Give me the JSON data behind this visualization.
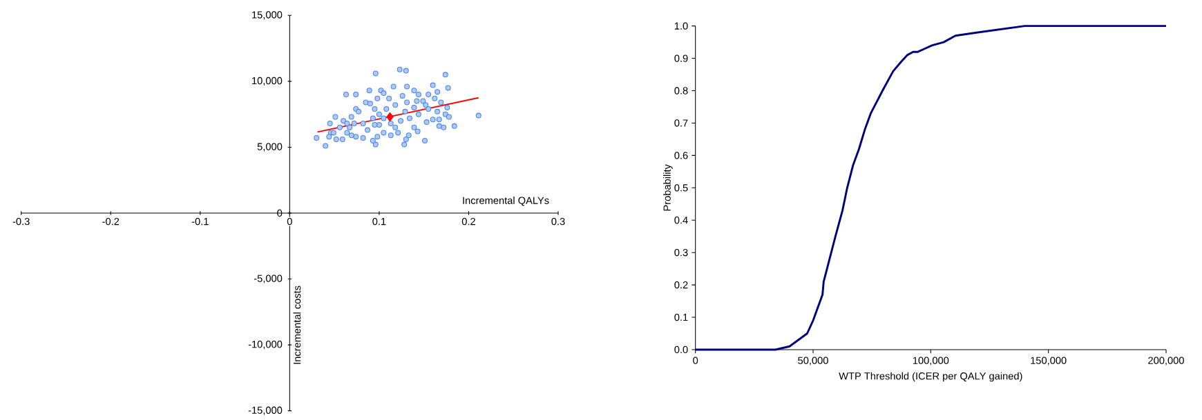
{
  "chart_data": [
    {
      "type": "scatter",
      "xlabel": "Incremental QALYs",
      "ylabel": "Incremental costs",
      "xlim": [
        -0.3,
        0.3
      ],
      "xticks": [
        -0.3,
        -0.2,
        -0.1,
        0,
        0.1,
        0.2,
        0.3
      ],
      "ylim": [
        -15000,
        15000
      ],
      "yticks": [
        {
          "value": -15000,
          "label": "-15,000"
        },
        {
          "value": -10000,
          "label": "-10,000"
        },
        {
          "value": -5000,
          "label": "-5,000"
        },
        {
          "value": 0,
          "label": "0"
        },
        {
          "value": 5000,
          "label": "5,000"
        },
        {
          "value": 10000,
          "label": "10,000"
        },
        {
          "value": 15000,
          "label": "15,000"
        }
      ],
      "series": [
        {
          "color": "#4a86e8",
          "marker": "circle",
          "x": [
            0.03,
            0.04,
            0.045,
            0.051,
            0.052,
            0.046,
            0.044,
            0.059,
            0.06,
            0.063,
            0.074,
            0.089,
            0.096,
            0.096,
            0.093,
            0.102,
            0.123,
            0.13,
            0.174,
            0.177,
            0.16,
            0.165,
            0.155,
            0.169,
            0.176,
            0.174,
            0.178,
            0.211,
            0.184,
            0.172,
            0.167,
            0.167,
            0.16,
            0.153,
            0.151,
            0.128,
            0.13,
            0.133,
            0.143,
            0.139,
            0.121,
            0.113,
            0.105,
            0.098,
            0.082,
            0.074,
            0.069,
            0.064,
            0.067,
            0.064,
            0.069,
            0.074,
            0.085,
            0.09,
            0.098,
            0.105,
            0.116,
            0.131,
            0.139,
            0.144,
            0.149,
            0.139,
            0.129,
            0.118,
            0.108,
            0.1,
            0.093,
            0.082,
            0.087,
            0.1,
            0.113,
            0.124,
            0.134,
            0.144,
            0.155,
            0.162,
            0.126,
            0.111,
            0.095,
            0.077,
            0.072,
            0.056,
            0.049,
            0.118,
            0.105,
            0.131,
            0.142,
            0.152,
            0.165,
            0.095
          ],
          "values": [
            5700,
            5100,
            6800,
            7300,
            5600,
            6100,
            5800,
            5600,
            7000,
            9000,
            9000,
            9300,
            10600,
            5200,
            5500,
            9300,
            10900,
            10800,
            10500,
            9500,
            9700,
            9200,
            9000,
            8400,
            8000,
            7500,
            7300,
            7400,
            6600,
            6500,
            6600,
            7100,
            7100,
            6900,
            5500,
            5200,
            5600,
            5900,
            6200,
            6500,
            6100,
            5900,
            6100,
            5800,
            5700,
            5800,
            5900,
            6100,
            6500,
            6800,
            7300,
            7900,
            8400,
            8300,
            8700,
            9100,
            9600,
            9600,
            9300,
            9000,
            8500,
            8000,
            7700,
            8200,
            7900,
            7500,
            7200,
            6800,
            6300,
            6700,
            6800,
            7000,
            7200,
            7500,
            7900,
            8700,
            8900,
            8700,
            7900,
            7700,
            6800,
            6500,
            6100,
            6500,
            7200,
            8400,
            8500,
            8200,
            7700,
            6700
          ]
        },
        {
          "color": "#ff0000",
          "marker": "diamond",
          "x": [
            0.112
          ],
          "values": [
            7300
          ]
        },
        {
          "type": "line",
          "color": "#ff0000",
          "marker": "none",
          "line_style": "solid",
          "x": [
            0.031,
            0.211
          ],
          "values": [
            6150,
            8750
          ]
        }
      ]
    },
    {
      "type": "line",
      "xlabel": "WTP Threshold (ICER per QALY gained)",
      "ylabel": "Probability",
      "xlim": [
        0,
        200000
      ],
      "xticks": [
        {
          "value": 0,
          "label": "0"
        },
        {
          "value": 50000,
          "label": "50,000"
        },
        {
          "value": 100000,
          "label": "100,000"
        },
        {
          "value": 150000,
          "label": "150,000"
        },
        {
          "value": 200000,
          "label": "200,000"
        }
      ],
      "ylim": [
        0,
        1
      ],
      "yticks": [
        {
          "value": 0,
          "label": "0.0"
        },
        {
          "value": 0.1,
          "label": "0.1"
        },
        {
          "value": 0.2,
          "label": "0.2"
        },
        {
          "value": 0.3,
          "label": "0.3"
        },
        {
          "value": 0.4,
          "label": "0.4"
        },
        {
          "value": 0.5,
          "label": "0.5"
        },
        {
          "value": 0.6,
          "label": "0.6"
        },
        {
          "value": 0.7,
          "label": "0.7"
        },
        {
          "value": 0.8,
          "label": "0.8"
        },
        {
          "value": 0.9,
          "label": "0.9"
        },
        {
          "value": 1,
          "label": "1.0"
        }
      ],
      "marker": "none",
      "line_style": "solid",
      "series": [
        {
          "color": "#000080",
          "x": [
            0,
            34000,
            40000,
            47500,
            50000,
            52000,
            54000,
            54500,
            57000,
            59500,
            62500,
            64500,
            67000,
            69500,
            72000,
            74500,
            79500,
            84000,
            87500,
            90000,
            92500,
            94500,
            97500,
            100500,
            105500,
            110500,
            120000,
            130000,
            140000,
            160000,
            165000,
            200000
          ],
          "values": [
            0,
            0,
            0.01,
            0.05,
            0.09,
            0.13,
            0.17,
            0.21,
            0.28,
            0.35,
            0.43,
            0.5,
            0.57,
            0.62,
            0.68,
            0.73,
            0.8,
            0.86,
            0.89,
            0.91,
            0.92,
            0.92,
            0.93,
            0.94,
            0.95,
            0.97,
            0.98,
            0.99,
            1.0,
            1.0,
            1.0,
            1.0
          ]
        }
      ]
    }
  ]
}
